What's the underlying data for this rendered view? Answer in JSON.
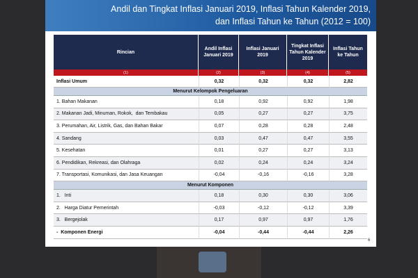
{
  "title_lines": [
    "Andil dan Tingkat Inflasi Januari 2019, Inflasi Tahun Kalender 2019,",
    "dan Inflasi Tahun ke Tahun (2012 = 100)"
  ],
  "table": {
    "headers": [
      "Rincian",
      "Andil Inflasi Januari 2019",
      "Inflasi Januari 2019",
      "Tingkat Inflasi Tahun Kalender 2019",
      "Inflasi Tahun ke Tahun"
    ],
    "col_numbers": [
      "(1)",
      "(2)",
      "(3)",
      "(4)",
      "(5)"
    ],
    "rows": [
      {
        "label": "Inflasi Umum",
        "values": [
          "0,32",
          "0,32",
          "0,32",
          "2,82"
        ],
        "bold": true
      },
      {
        "section": "Menurut Kelompok Pengeluaran"
      },
      {
        "label": "1. Bahan Makanan",
        "values": [
          "0,18",
          "0,92",
          "0,92",
          "1,98"
        ]
      },
      {
        "label": "2. Makanan Jadi, Minuman, Rokok,  dan Tembakau",
        "values": [
          "0,05",
          "0,27",
          "0,27",
          "3,75"
        ]
      },
      {
        "label": "3. Perumahan, Air, Listrik, Gas, dan Bahan Bakar",
        "values": [
          "0,07",
          "0,28",
          "0,28",
          "2,48"
        ]
      },
      {
        "label": "4. Sandang",
        "values": [
          "0,03",
          "0,47",
          "0,47",
          "3,55"
        ]
      },
      {
        "label": "5. Kesehatan",
        "values": [
          "0,01",
          "0,27",
          "0,27",
          "3,13"
        ]
      },
      {
        "label": "6. Pendidikan, Rekreasi, dan Olahraga",
        "values": [
          "0,02",
          "0,24",
          "0,24",
          "3,24"
        ]
      },
      {
        "label": "7. Transportasi, Komunikasi, dan Jasa Keuangan",
        "values": [
          "-0,04",
          "-0,16",
          "-0,16",
          "3,28"
        ]
      },
      {
        "section": "Menurut Komponen"
      },
      {
        "label": "1.   Inti",
        "values": [
          "0,18",
          "0,30",
          "0,30",
          "3,06"
        ]
      },
      {
        "label": "2.   Harga Diatur Pemerintah",
        "values": [
          "-0,03",
          "-0,12",
          "-0,12",
          "3,39"
        ]
      },
      {
        "label": "3.   Bergejolak",
        "values": [
          "0,17",
          "0,97",
          "0,97",
          "1,76"
        ]
      },
      {
        "label": "-  Komponen Energi",
        "values": [
          "-0,04",
          "-0,44",
          "-0,44",
          "2,26"
        ],
        "bold": true
      }
    ]
  },
  "page_number": "6"
}
